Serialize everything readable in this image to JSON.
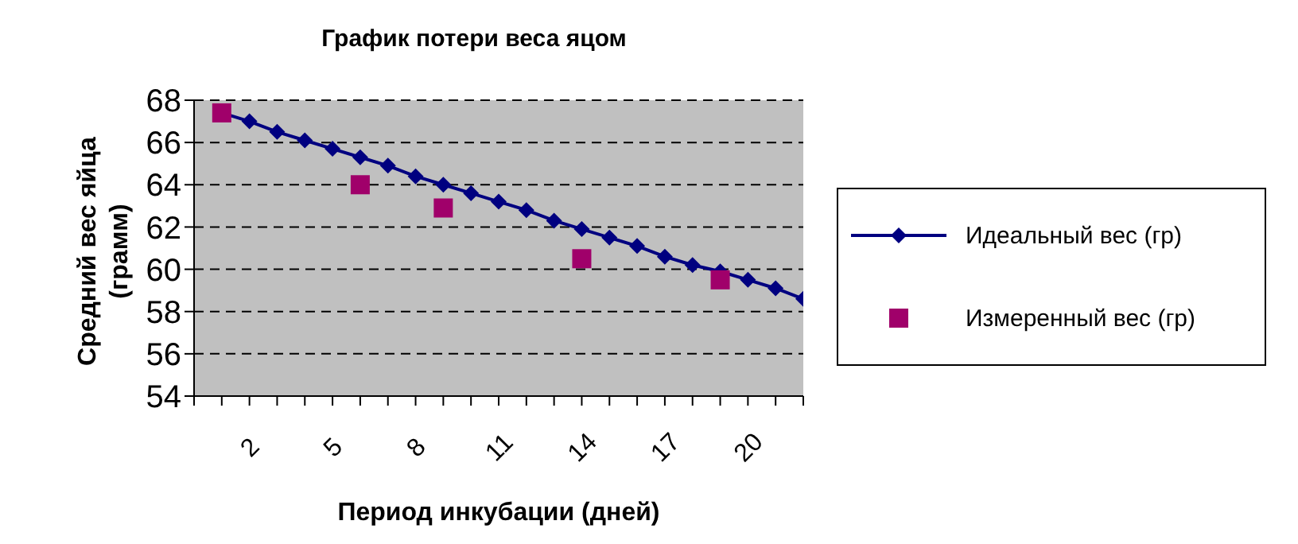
{
  "chart_data": {
    "type": "line",
    "title": "График потери веса яцом",
    "xlabel": "Период инкубации (дней)",
    "ylabel": "Средний вес яйца\n(грамм)",
    "xlim": [
      0,
      22
    ],
    "xticks": [
      {
        "value": 0,
        "label": null
      },
      {
        "value": 1,
        "label": null
      },
      2,
      {
        "value": 3,
        "label": null
      },
      {
        "value": 4,
        "label": null
      },
      5,
      {
        "value": 6,
        "label": null
      },
      {
        "value": 7,
        "label": null
      },
      8,
      {
        "value": 9,
        "label": null
      },
      {
        "value": 10,
        "label": null
      },
      11,
      {
        "value": 12,
        "label": null
      },
      {
        "value": 13,
        "label": null
      },
      14,
      {
        "value": 15,
        "label": null
      },
      {
        "value": 16,
        "label": null
      },
      17,
      {
        "value": 18,
        "label": null
      },
      {
        "value": 19,
        "label": null
      },
      20,
      {
        "value": 21,
        "label": null
      },
      {
        "value": 22,
        "label": null
      }
    ],
    "ylim": [
      54,
      68
    ],
    "yticks": [
      54,
      56,
      58,
      60,
      62,
      64,
      66,
      68
    ],
    "grid": "y",
    "legend": "right",
    "series": [
      {
        "name": "Идеальный вес (гр)",
        "type": "line",
        "color": "#000080",
        "marker": "diamond",
        "line_style": "solid",
        "x": [
          1,
          2,
          3,
          4,
          5,
          6,
          7,
          8,
          9,
          10,
          11,
          12,
          13,
          14,
          15,
          16,
          17,
          18,
          19,
          20,
          21,
          22
        ],
        "values": [
          67.4,
          67.0,
          66.5,
          66.1,
          65.7,
          65.3,
          64.9,
          64.4,
          64.0,
          63.6,
          63.2,
          62.8,
          62.3,
          61.9,
          61.5,
          61.1,
          60.6,
          60.2,
          59.9,
          59.5,
          59.1,
          58.6
        ]
      },
      {
        "name": "Измеренный вес (гр)",
        "type": "scatter",
        "color": "#a0006a",
        "marker": "square",
        "x": [
          1,
          6,
          9,
          14,
          19
        ],
        "values": [
          67.4,
          64.0,
          62.9,
          60.5,
          59.5
        ]
      }
    ]
  }
}
